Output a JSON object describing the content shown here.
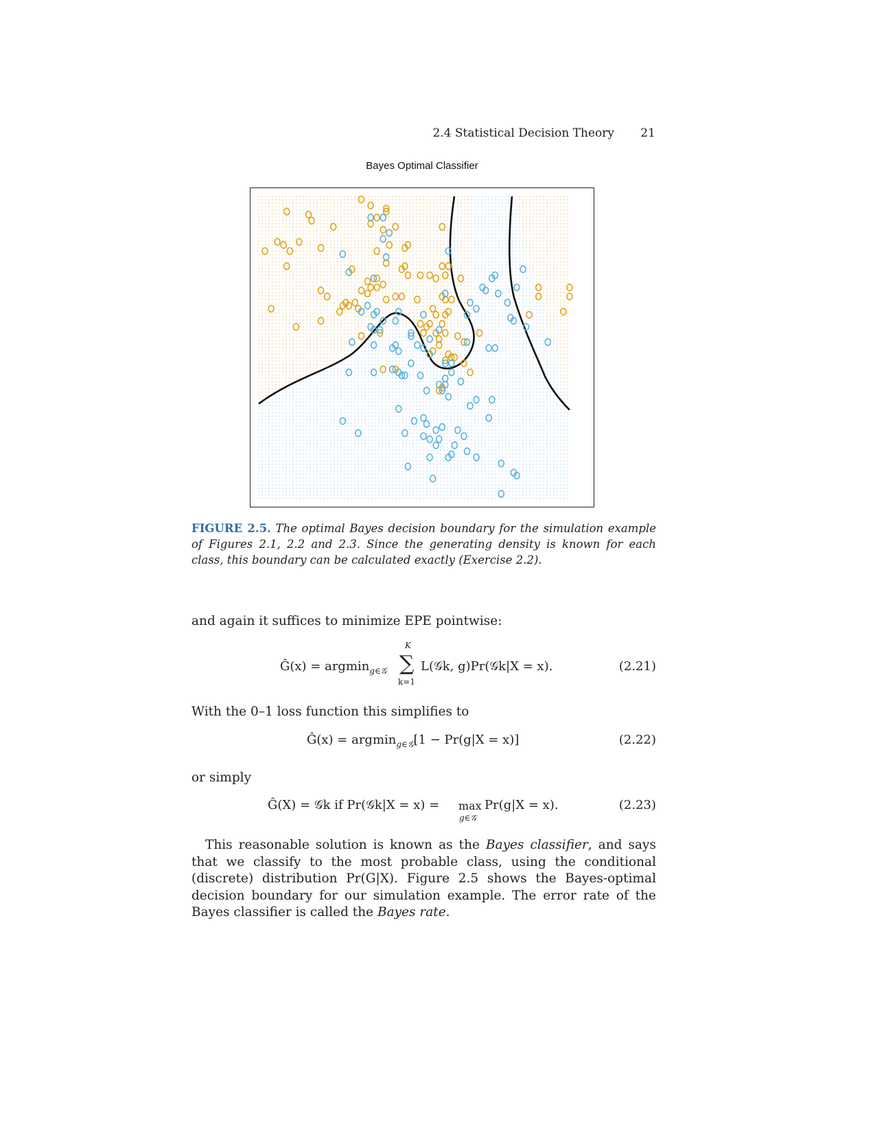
{
  "header": {
    "section_title": "2.4 Statistical Decision Theory",
    "page_number": "21"
  },
  "figure": {
    "title": "Bayes Optimal Classifier",
    "caption_label": "FIGURE 2.5.",
    "caption_text": "The optimal Bayes decision boundary for the simulation example of Figures 2.1, 2.2 and 2.3. Since the generating density is known for each class, this boundary can be calculated exactly (Exercise 2.2)."
  },
  "chart_data": {
    "type": "scatter",
    "title": "Bayes Optimal Classifier",
    "xlabel": "",
    "ylabel": "",
    "xlim": [
      0,
      100
    ],
    "ylim": [
      0,
      100
    ],
    "grid": false,
    "legend": "none",
    "colors": {
      "orange": "#e0a21a",
      "blue": "#5ab0de",
      "boundary": "#111111",
      "frame": "#222222"
    },
    "series": [
      {
        "name": "orange",
        "points": [
          [
            33,
            99
          ],
          [
            36,
            97
          ],
          [
            41,
            96
          ],
          [
            9,
            95
          ],
          [
            16,
            94
          ],
          [
            41,
            95
          ],
          [
            17,
            92
          ],
          [
            38,
            93
          ],
          [
            24,
            90
          ],
          [
            36,
            91
          ],
          [
            44,
            90
          ],
          [
            59,
            90
          ],
          [
            40,
            89
          ],
          [
            6,
            85
          ],
          [
            8,
            84
          ],
          [
            13,
            85
          ],
          [
            42,
            84
          ],
          [
            2,
            82
          ],
          [
            10,
            82
          ],
          [
            20,
            83
          ],
          [
            38,
            82
          ],
          [
            48,
            84
          ],
          [
            47,
            83
          ],
          [
            41,
            78
          ],
          [
            9,
            77
          ],
          [
            30,
            76
          ],
          [
            46,
            76
          ],
          [
            47,
            77
          ],
          [
            61,
            77
          ],
          [
            59,
            77
          ],
          [
            48,
            74
          ],
          [
            52,
            74
          ],
          [
            55,
            74
          ],
          [
            57,
            73
          ],
          [
            60,
            74
          ],
          [
            38,
            73
          ],
          [
            65,
            73
          ],
          [
            35,
            72
          ],
          [
            40,
            71
          ],
          [
            20,
            69
          ],
          [
            33,
            69
          ],
          [
            38,
            70
          ],
          [
            36,
            70
          ],
          [
            35,
            68
          ],
          [
            22,
            67
          ],
          [
            41,
            66
          ],
          [
            44,
            67
          ],
          [
            46,
            67
          ],
          [
            59,
            67
          ],
          [
            60,
            66
          ],
          [
            62,
            66
          ],
          [
            51,
            66
          ],
          [
            4,
            63
          ],
          [
            31,
            65
          ],
          [
            28,
            65
          ],
          [
            29,
            64
          ],
          [
            27,
            64
          ],
          [
            32,
            63
          ],
          [
            26,
            62
          ],
          [
            56,
            63
          ],
          [
            57,
            61
          ],
          [
            61,
            62
          ],
          [
            60,
            61
          ],
          [
            100,
            70
          ],
          [
            100,
            67
          ],
          [
            90,
            70
          ],
          [
            90,
            67
          ],
          [
            98,
            62
          ],
          [
            87,
            61
          ],
          [
            20,
            59
          ],
          [
            12,
            57
          ],
          [
            52,
            58
          ],
          [
            55,
            58
          ],
          [
            59,
            58
          ],
          [
            54,
            57
          ],
          [
            53,
            55
          ],
          [
            57,
            55
          ],
          [
            60,
            55
          ],
          [
            58,
            53
          ],
          [
            64,
            54
          ],
          [
            33,
            54
          ],
          [
            39,
            55
          ],
          [
            71,
            55
          ],
          [
            66,
            52
          ],
          [
            58,
            51
          ],
          [
            56,
            49
          ],
          [
            61,
            48
          ],
          [
            63,
            47
          ],
          [
            62,
            47
          ],
          [
            60,
            46
          ],
          [
            66,
            45
          ],
          [
            40,
            43
          ],
          [
            44,
            43
          ],
          [
            68,
            42
          ],
          [
            58,
            36
          ],
          [
            59,
            37
          ]
        ]
      },
      {
        "name": "blue",
        "points": [
          [
            36,
            93
          ],
          [
            40,
            93
          ],
          [
            42,
            88
          ],
          [
            40,
            86
          ],
          [
            61,
            82
          ],
          [
            27,
            81
          ],
          [
            41,
            80
          ],
          [
            85,
            76
          ],
          [
            29,
            75
          ],
          [
            37,
            73
          ],
          [
            75,
            73
          ],
          [
            76,
            74
          ],
          [
            72,
            70
          ],
          [
            83,
            70
          ],
          [
            60,
            68
          ],
          [
            73,
            69
          ],
          [
            77,
            68
          ],
          [
            35,
            64
          ],
          [
            68,
            65
          ],
          [
            80,
            65
          ],
          [
            70,
            63
          ],
          [
            33,
            62
          ],
          [
            37,
            61
          ],
          [
            38,
            62
          ],
          [
            45,
            62
          ],
          [
            53,
            61
          ],
          [
            81,
            60
          ],
          [
            67,
            61
          ],
          [
            40,
            59
          ],
          [
            44,
            59
          ],
          [
            82,
            59
          ],
          [
            86,
            57
          ],
          [
            58,
            56
          ],
          [
            36,
            57
          ],
          [
            37,
            56
          ],
          [
            39,
            56
          ],
          [
            49,
            55
          ],
          [
            49,
            54
          ],
          [
            55,
            53
          ],
          [
            67,
            52
          ],
          [
            93,
            52
          ],
          [
            30,
            52
          ],
          [
            37,
            51
          ],
          [
            44,
            51
          ],
          [
            43,
            50
          ],
          [
            51,
            51
          ],
          [
            53,
            50
          ],
          [
            74,
            50
          ],
          [
            76,
            50
          ],
          [
            45,
            49
          ],
          [
            55,
            48
          ],
          [
            49,
            45
          ],
          [
            60,
            45
          ],
          [
            62,
            45
          ],
          [
            29,
            42
          ],
          [
            37,
            42
          ],
          [
            45,
            42
          ],
          [
            46,
            41
          ],
          [
            47,
            41
          ],
          [
            52,
            41
          ],
          [
            60,
            40
          ],
          [
            62,
            42
          ],
          [
            43,
            43
          ],
          [
            65,
            39
          ],
          [
            58,
            38
          ],
          [
            60,
            38
          ],
          [
            54,
            36
          ],
          [
            59,
            36
          ],
          [
            61,
            34
          ],
          [
            70,
            33
          ],
          [
            45,
            30
          ],
          [
            75,
            33
          ],
          [
            68,
            31
          ],
          [
            53,
            27
          ],
          [
            74,
            27
          ],
          [
            27,
            26
          ],
          [
            50,
            26
          ],
          [
            54,
            25
          ],
          [
            57,
            23
          ],
          [
            59,
            24
          ],
          [
            64,
            23
          ],
          [
            66,
            21
          ],
          [
            32,
            22
          ],
          [
            47,
            22
          ],
          [
            53,
            21
          ],
          [
            55,
            20
          ],
          [
            58,
            20
          ],
          [
            57,
            18
          ],
          [
            63,
            18
          ],
          [
            67,
            16
          ],
          [
            61,
            14
          ],
          [
            70,
            14
          ],
          [
            55,
            14
          ],
          [
            62,
            15
          ],
          [
            78,
            12
          ],
          [
            82,
            9
          ],
          [
            83,
            8
          ],
          [
            48,
            11
          ],
          [
            56,
            7
          ],
          [
            78,
            2
          ]
        ]
      }
    ]
  },
  "body": {
    "para1": "and again it suffices to minimize EPE pointwise:",
    "eq221_num": "(2.21)",
    "para2": "With the 0–1 loss function this simplifies to",
    "eq222_num": "(2.22)",
    "para3": "or simply",
    "eq223_num": "(2.23)",
    "para4_start": "This reasonable solution is known as the ",
    "para4_em1": "Bayes classifier",
    "para4_mid": ", and says that we classify to the most probable class, using the conditional (discrete) distribution Pr(G|X). Figure 2.5 shows the Bayes-optimal decision boundary for our simulation example. The error rate of the Bayes classifier is called the ",
    "para4_em2": "Bayes rate",
    "para4_end": "."
  },
  "equations": {
    "eq221": {
      "lhs": "Ĝ(x) = argmin",
      "lhs_sub": "g∈𝒢",
      "sum_top": "K",
      "sum_sym": "∑",
      "sum_bottom": "k=1",
      "rhs": "L(𝒢k, g)Pr(𝒢k|X = x)."
    },
    "eq222": {
      "lhs": "Ĝ(x) = argmin",
      "lhs_sub": "g∈𝒢",
      "rhs": "[1 − Pr(g|X = x)]"
    },
    "eq223": {
      "lhs": "Ĝ(X) = 𝒢k if Pr(𝒢k|X = x) =",
      "max_word": "max",
      "max_sub": "g∈𝒢",
      "rhs": "Pr(g|X = x)."
    }
  }
}
